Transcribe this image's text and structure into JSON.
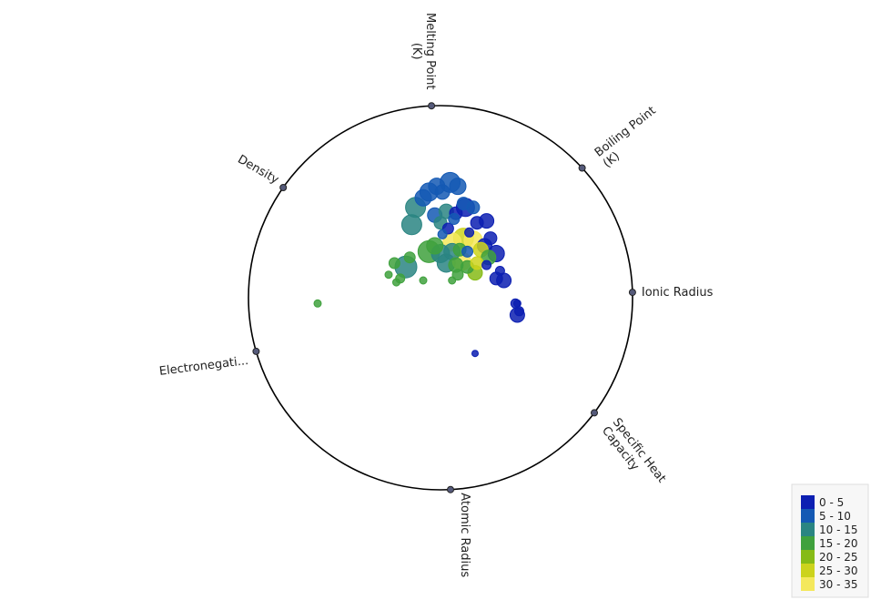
{
  "chart_data": {
    "type": "scatter",
    "projection": "radviz",
    "anchors": [
      "Melting Point (K)",
      "Boiling Point (K)",
      "Ionic Radius",
      "Specific Heat Capacity",
      "Atomic Radius",
      "Electronegati...",
      "Density"
    ],
    "legend": {
      "placement": "bottom-right",
      "entries": [
        {
          "label": "0 - 5",
          "color": "#0c1fb2"
        },
        {
          "label": "5 - 10",
          "color": "#1459b4"
        },
        {
          "label": "10 - 15",
          "color": "#2a8582"
        },
        {
          "label": "15 - 20",
          "color": "#3fa13d"
        },
        {
          "label": "20 - 25",
          "color": "#86bb16"
        },
        {
          "label": "25 - 30",
          "color": "#ccd31c"
        },
        {
          "label": "30 - 35",
          "color": "#f4e85c"
        }
      ]
    },
    "points": [
      {
        "x": 0.05,
        "y": 0.6,
        "r": 11,
        "c": 1
      },
      {
        "x": -0.02,
        "y": 0.58,
        "r": 9,
        "c": 1
      },
      {
        "x": 0.09,
        "y": 0.58,
        "r": 9,
        "c": 1
      },
      {
        "x": -0.06,
        "y": 0.55,
        "r": 10,
        "c": 1
      },
      {
        "x": -0.09,
        "y": 0.52,
        "r": 9,
        "c": 1
      },
      {
        "x": -0.13,
        "y": 0.47,
        "r": 11,
        "c": 2
      },
      {
        "x": 0.01,
        "y": 0.55,
        "r": 8,
        "c": 1
      },
      {
        "x": 0.13,
        "y": 0.47,
        "r": 10,
        "c": 0
      },
      {
        "x": 0.17,
        "y": 0.47,
        "r": 7,
        "c": 1
      },
      {
        "x": -0.03,
        "y": 0.43,
        "r": 8,
        "c": 1
      },
      {
        "x": 0.03,
        "y": 0.45,
        "r": 8,
        "c": 2
      },
      {
        "x": 0.08,
        "y": 0.44,
        "r": 7,
        "c": 0
      },
      {
        "x": 0.12,
        "y": 0.49,
        "r": 7,
        "c": 1
      },
      {
        "x": -0.15,
        "y": 0.38,
        "r": 11,
        "c": 2
      },
      {
        "x": 0.0,
        "y": 0.39,
        "r": 7,
        "c": 2
      },
      {
        "x": 0.04,
        "y": 0.36,
        "r": 6,
        "c": 0
      },
      {
        "x": 0.07,
        "y": 0.41,
        "r": 6,
        "c": 1
      },
      {
        "x": 0.01,
        "y": 0.33,
        "r": 5,
        "c": 1
      },
      {
        "x": 0.15,
        "y": 0.34,
        "r": 5,
        "c": 0
      },
      {
        "x": 0.19,
        "y": 0.39,
        "r": 7,
        "c": 0
      },
      {
        "x": 0.24,
        "y": 0.4,
        "r": 8,
        "c": 0
      },
      {
        "x": 0.12,
        "y": 0.31,
        "r": 11,
        "c": 5
      },
      {
        "x": 0.06,
        "y": 0.29,
        "r": 10,
        "c": 6
      },
      {
        "x": 0.17,
        "y": 0.3,
        "r": 10,
        "c": 6
      },
      {
        "x": 0.23,
        "y": 0.27,
        "r": 8,
        "c": 0
      },
      {
        "x": 0.26,
        "y": 0.31,
        "r": 7,
        "c": 0
      },
      {
        "x": 0.21,
        "y": 0.25,
        "r": 8,
        "c": 5
      },
      {
        "x": -0.06,
        "y": 0.24,
        "r": 12,
        "c": 3
      },
      {
        "x": -0.03,
        "y": 0.27,
        "r": 9,
        "c": 3
      },
      {
        "x": 0.0,
        "y": 0.23,
        "r": 10,
        "c": 2
      },
      {
        "x": 0.06,
        "y": 0.24,
        "r": 9,
        "c": 2
      },
      {
        "x": 0.1,
        "y": 0.25,
        "r": 7,
        "c": 3
      },
      {
        "x": 0.14,
        "y": 0.24,
        "r": 6,
        "c": 1
      },
      {
        "x": 0.25,
        "y": 0.21,
        "r": 8,
        "c": 3
      },
      {
        "x": 0.29,
        "y": 0.23,
        "r": 9,
        "c": 0
      },
      {
        "x": -0.16,
        "y": 0.21,
        "r": 6,
        "c": 3
      },
      {
        "x": -0.18,
        "y": 0.16,
        "r": 12,
        "c": 2
      },
      {
        "x": 0.03,
        "y": 0.18,
        "r": 10,
        "c": 2
      },
      {
        "x": 0.08,
        "y": 0.17,
        "r": 8,
        "c": 3
      },
      {
        "x": 0.11,
        "y": 0.19,
        "r": 10,
        "c": 6
      },
      {
        "x": 0.14,
        "y": 0.16,
        "r": 7,
        "c": 3
      },
      {
        "x": 0.19,
        "y": 0.18,
        "r": 7,
        "c": 5
      },
      {
        "x": 0.24,
        "y": 0.17,
        "r": 5,
        "c": 0
      },
      {
        "x": -0.24,
        "y": 0.18,
        "r": 6,
        "c": 3
      },
      {
        "x": 0.09,
        "y": 0.12,
        "r": 6,
        "c": 3
      },
      {
        "x": 0.18,
        "y": 0.13,
        "r": 8,
        "c": 4
      },
      {
        "x": 0.31,
        "y": 0.14,
        "r": 5,
        "c": 0
      },
      {
        "x": 0.29,
        "y": 0.1,
        "r": 7,
        "c": 0
      },
      {
        "x": 0.33,
        "y": 0.09,
        "r": 8,
        "c": 0
      },
      {
        "x": -0.27,
        "y": 0.12,
        "r": 4,
        "c": 3
      },
      {
        "x": -0.21,
        "y": 0.1,
        "r": 5,
        "c": 3
      },
      {
        "x": -0.23,
        "y": 0.08,
        "r": 4,
        "c": 3
      },
      {
        "x": -0.09,
        "y": 0.09,
        "r": 4,
        "c": 3
      },
      {
        "x": 0.06,
        "y": 0.09,
        "r": 4,
        "c": 3
      },
      {
        "x": 0.39,
        "y": -0.03,
        "r": 5,
        "c": 0
      },
      {
        "x": 0.4,
        "y": -0.03,
        "r": 4,
        "c": 0
      },
      {
        "x": 0.41,
        "y": -0.07,
        "r": 5,
        "c": 0
      },
      {
        "x": 0.4,
        "y": -0.09,
        "r": 8,
        "c": 0
      },
      {
        "x": 0.18,
        "y": -0.29,
        "r": 3.5,
        "c": 0
      },
      {
        "x": -0.64,
        "y": -0.03,
        "r": 4,
        "c": 3
      }
    ]
  }
}
